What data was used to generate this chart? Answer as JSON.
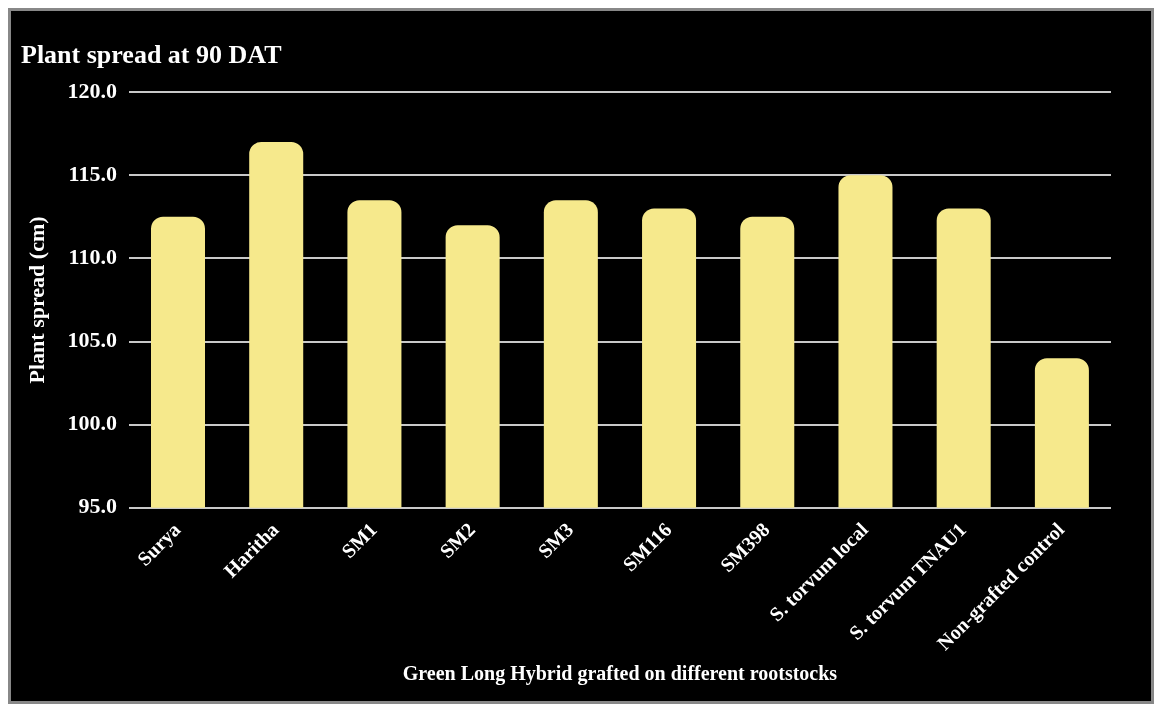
{
  "chart_data": {
    "type": "bar",
    "title": "Plant spread at 90 DAT",
    "xlabel": "Green Long Hybrid grafted on different rootstocks",
    "ylabel": "Plant spread (cm)",
    "categories": [
      "Surya",
      "Haritha",
      "SM1",
      "SM2",
      "SM3",
      "SM116",
      "SM398",
      "S. torvum local",
      "S. torvum TNAU1",
      "Non-grafted control"
    ],
    "values": [
      112.5,
      117.0,
      113.5,
      112.0,
      113.5,
      113.0,
      112.5,
      115.0,
      113.0,
      104.0
    ],
    "color": "#f6e98c",
    "ylim": [
      95,
      120
    ],
    "yticks": [
      {
        "value": 95,
        "label": "95.0"
      },
      {
        "value": 100,
        "label": "100.0"
      },
      {
        "value": 105,
        "label": "105.0"
      },
      {
        "value": 110,
        "label": "110.0"
      },
      {
        "value": 115,
        "label": "115.0"
      },
      {
        "value": 120,
        "label": "120.0"
      }
    ],
    "grid": "y"
  }
}
